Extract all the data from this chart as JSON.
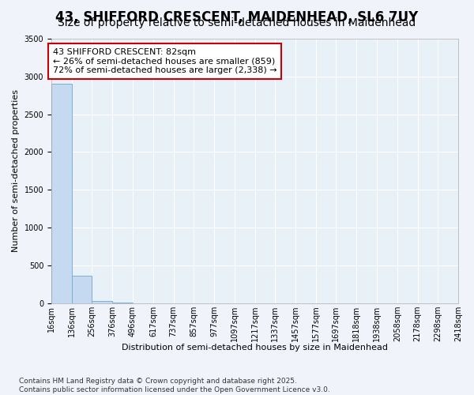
{
  "title_line1": "43, SHIFFORD CRESCENT, MAIDENHEAD, SL6 7UY",
  "title_line2": "Size of property relative to semi-detached houses in Maidenhead",
  "xlabel": "Distribution of semi-detached houses by size in Maidenhead",
  "ylabel": "Number of semi-detached properties",
  "footnote": "Contains HM Land Registry data © Crown copyright and database right 2025.\nContains public sector information licensed under the Open Government Licence v3.0.",
  "bar_edges": [
    16,
    136,
    256,
    376,
    496,
    617,
    737,
    857,
    977,
    1097,
    1217,
    1337,
    1457,
    1577,
    1697,
    1818,
    1938,
    2058,
    2178,
    2298,
    2418
  ],
  "bar_heights": [
    2900,
    360,
    30,
    5,
    2,
    1,
    1,
    0,
    0,
    0,
    0,
    0,
    0,
    0,
    0,
    0,
    0,
    0,
    0,
    0
  ],
  "bar_color": "#c5d9f0",
  "bar_edge_color": "#7bafd4",
  "annotation_text": "43 SHIFFORD CRESCENT: 82sqm\n← 26% of semi-detached houses are smaller (859)\n72% of semi-detached houses are larger (2,338) →",
  "annotation_box_color": "#cc0000",
  "ylim": [
    0,
    3500
  ],
  "yticks": [
    0,
    500,
    1000,
    1500,
    2000,
    2500,
    3000,
    3500
  ],
  "fig_bg_color": "#f0f4fa",
  "plot_bg_color": "#e8f0f8",
  "grid_color": "#ffffff",
  "title_fontsize": 12,
  "subtitle_fontsize": 10,
  "axis_label_fontsize": 8,
  "tick_fontsize": 7,
  "annotation_fontsize": 8,
  "footnote_fontsize": 6.5
}
